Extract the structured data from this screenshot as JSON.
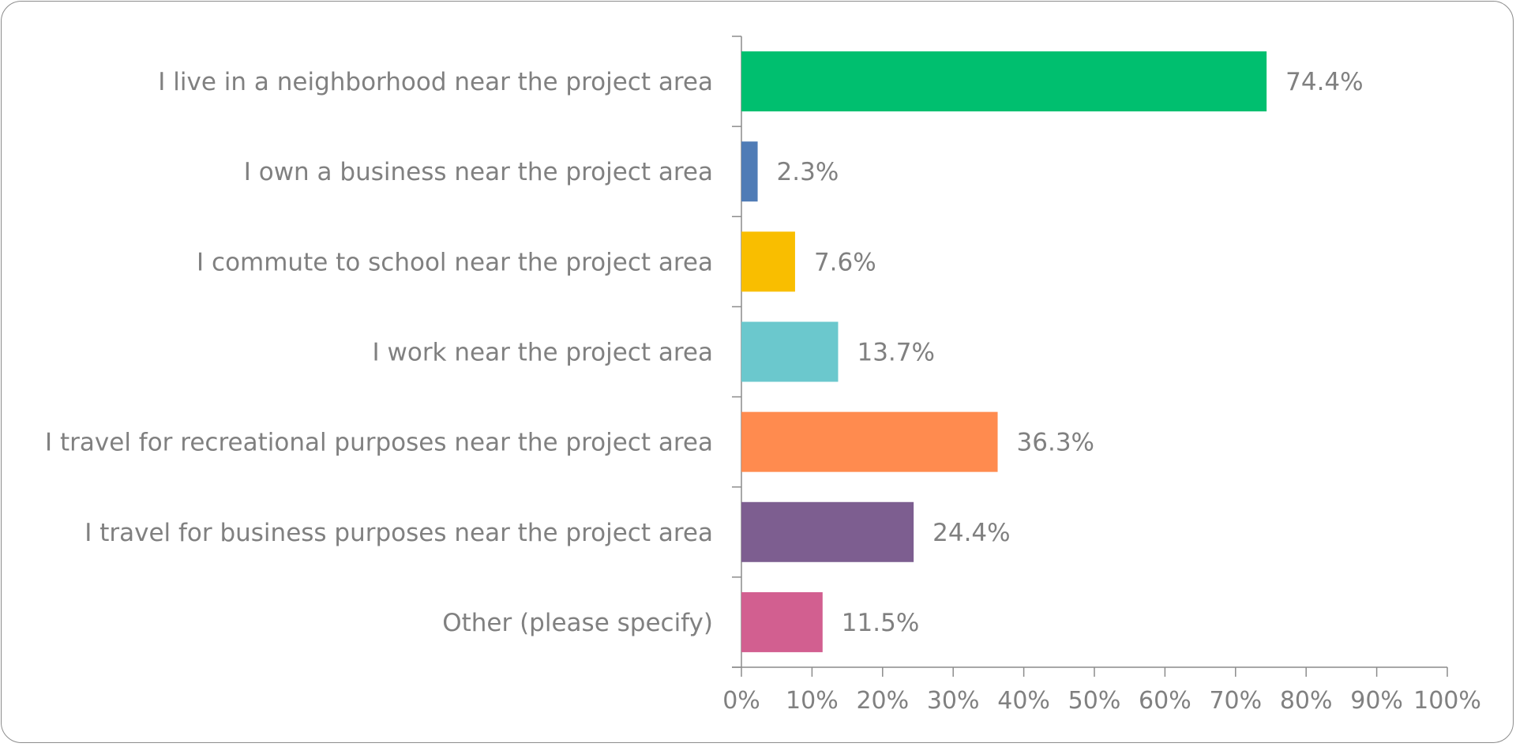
{
  "chart_data": {
    "type": "bar",
    "orientation": "horizontal",
    "categories": [
      "I live in a neighborhood near the project area",
      "I own a business near the project area",
      "I commute to school near the project area",
      "I work near the project area",
      "I travel for recreational purposes near the project area",
      "I travel for business purposes near the project area",
      "Other (please specify)"
    ],
    "values": [
      74.4,
      2.3,
      7.6,
      13.7,
      36.3,
      24.4,
      11.5
    ],
    "value_labels": [
      "74.4%",
      "2.3%",
      "7.6%",
      "13.7%",
      "36.3%",
      "24.4%",
      "11.5%"
    ],
    "colors": [
      "#00BF6F",
      "#507CB6",
      "#F9BE00",
      "#6BC8CD",
      "#FF8B4F",
      "#7D5E90",
      "#D25F90"
    ],
    "xlim": [
      0,
      100
    ],
    "x_ticks": [
      "0%",
      "10%",
      "20%",
      "30%",
      "40%",
      "50%",
      "60%",
      "70%",
      "80%",
      "90%",
      "100%"
    ],
    "grid": false,
    "legend": "none",
    "title": "",
    "xlabel": "",
    "ylabel": ""
  }
}
